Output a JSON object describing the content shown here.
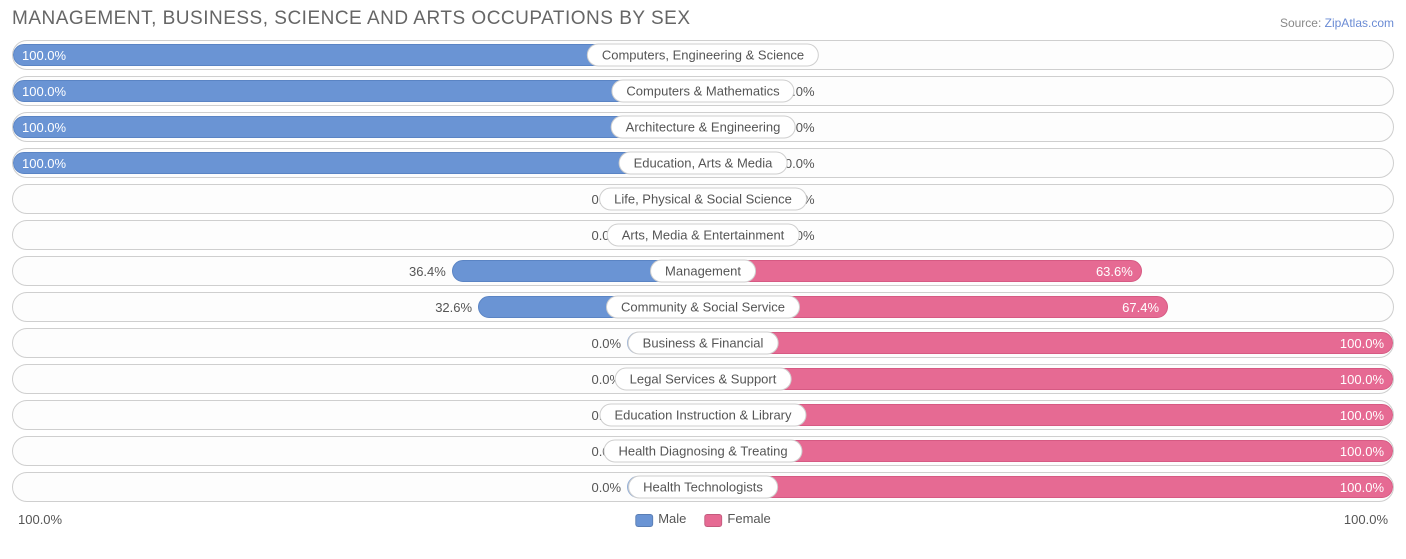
{
  "title": "MANAGEMENT, BUSINESS, SCIENCE AND ARTS OCCUPATIONS BY SEX",
  "source_prefix": "Source: ",
  "source_link": "ZipAtlas.com",
  "colors": {
    "male": "#6a94d4",
    "male_faded": "#a6c0e6",
    "female": "#e66a93",
    "female_faded": "#f0a6c0",
    "text": "#555555",
    "title": "#666666",
    "border": "#cfcfcf",
    "bg": "#ffffff"
  },
  "min_bar_width_pct": 11,
  "legend": {
    "male": "Male",
    "female": "Female"
  },
  "axis": {
    "left": "100.0%",
    "right": "100.0%"
  },
  "rows": [
    {
      "label": "Computers, Engineering & Science",
      "male": 100.0,
      "female": 0.0
    },
    {
      "label": "Computers & Mathematics",
      "male": 100.0,
      "female": 0.0
    },
    {
      "label": "Architecture & Engineering",
      "male": 100.0,
      "female": 0.0
    },
    {
      "label": "Education, Arts & Media",
      "male": 100.0,
      "female": 0.0
    },
    {
      "label": "Life, Physical & Social Science",
      "male": 0.0,
      "female": 0.0
    },
    {
      "label": "Arts, Media & Entertainment",
      "male": 0.0,
      "female": 0.0
    },
    {
      "label": "Management",
      "male": 36.4,
      "female": 63.6
    },
    {
      "label": "Community & Social Service",
      "male": 32.6,
      "female": 67.4
    },
    {
      "label": "Business & Financial",
      "male": 0.0,
      "female": 100.0
    },
    {
      "label": "Legal Services & Support",
      "male": 0.0,
      "female": 100.0
    },
    {
      "label": "Education Instruction & Library",
      "male": 0.0,
      "female": 100.0
    },
    {
      "label": "Health Diagnosing & Treating",
      "male": 0.0,
      "female": 100.0
    },
    {
      "label": "Health Technologists",
      "male": 0.0,
      "female": 100.0
    }
  ]
}
